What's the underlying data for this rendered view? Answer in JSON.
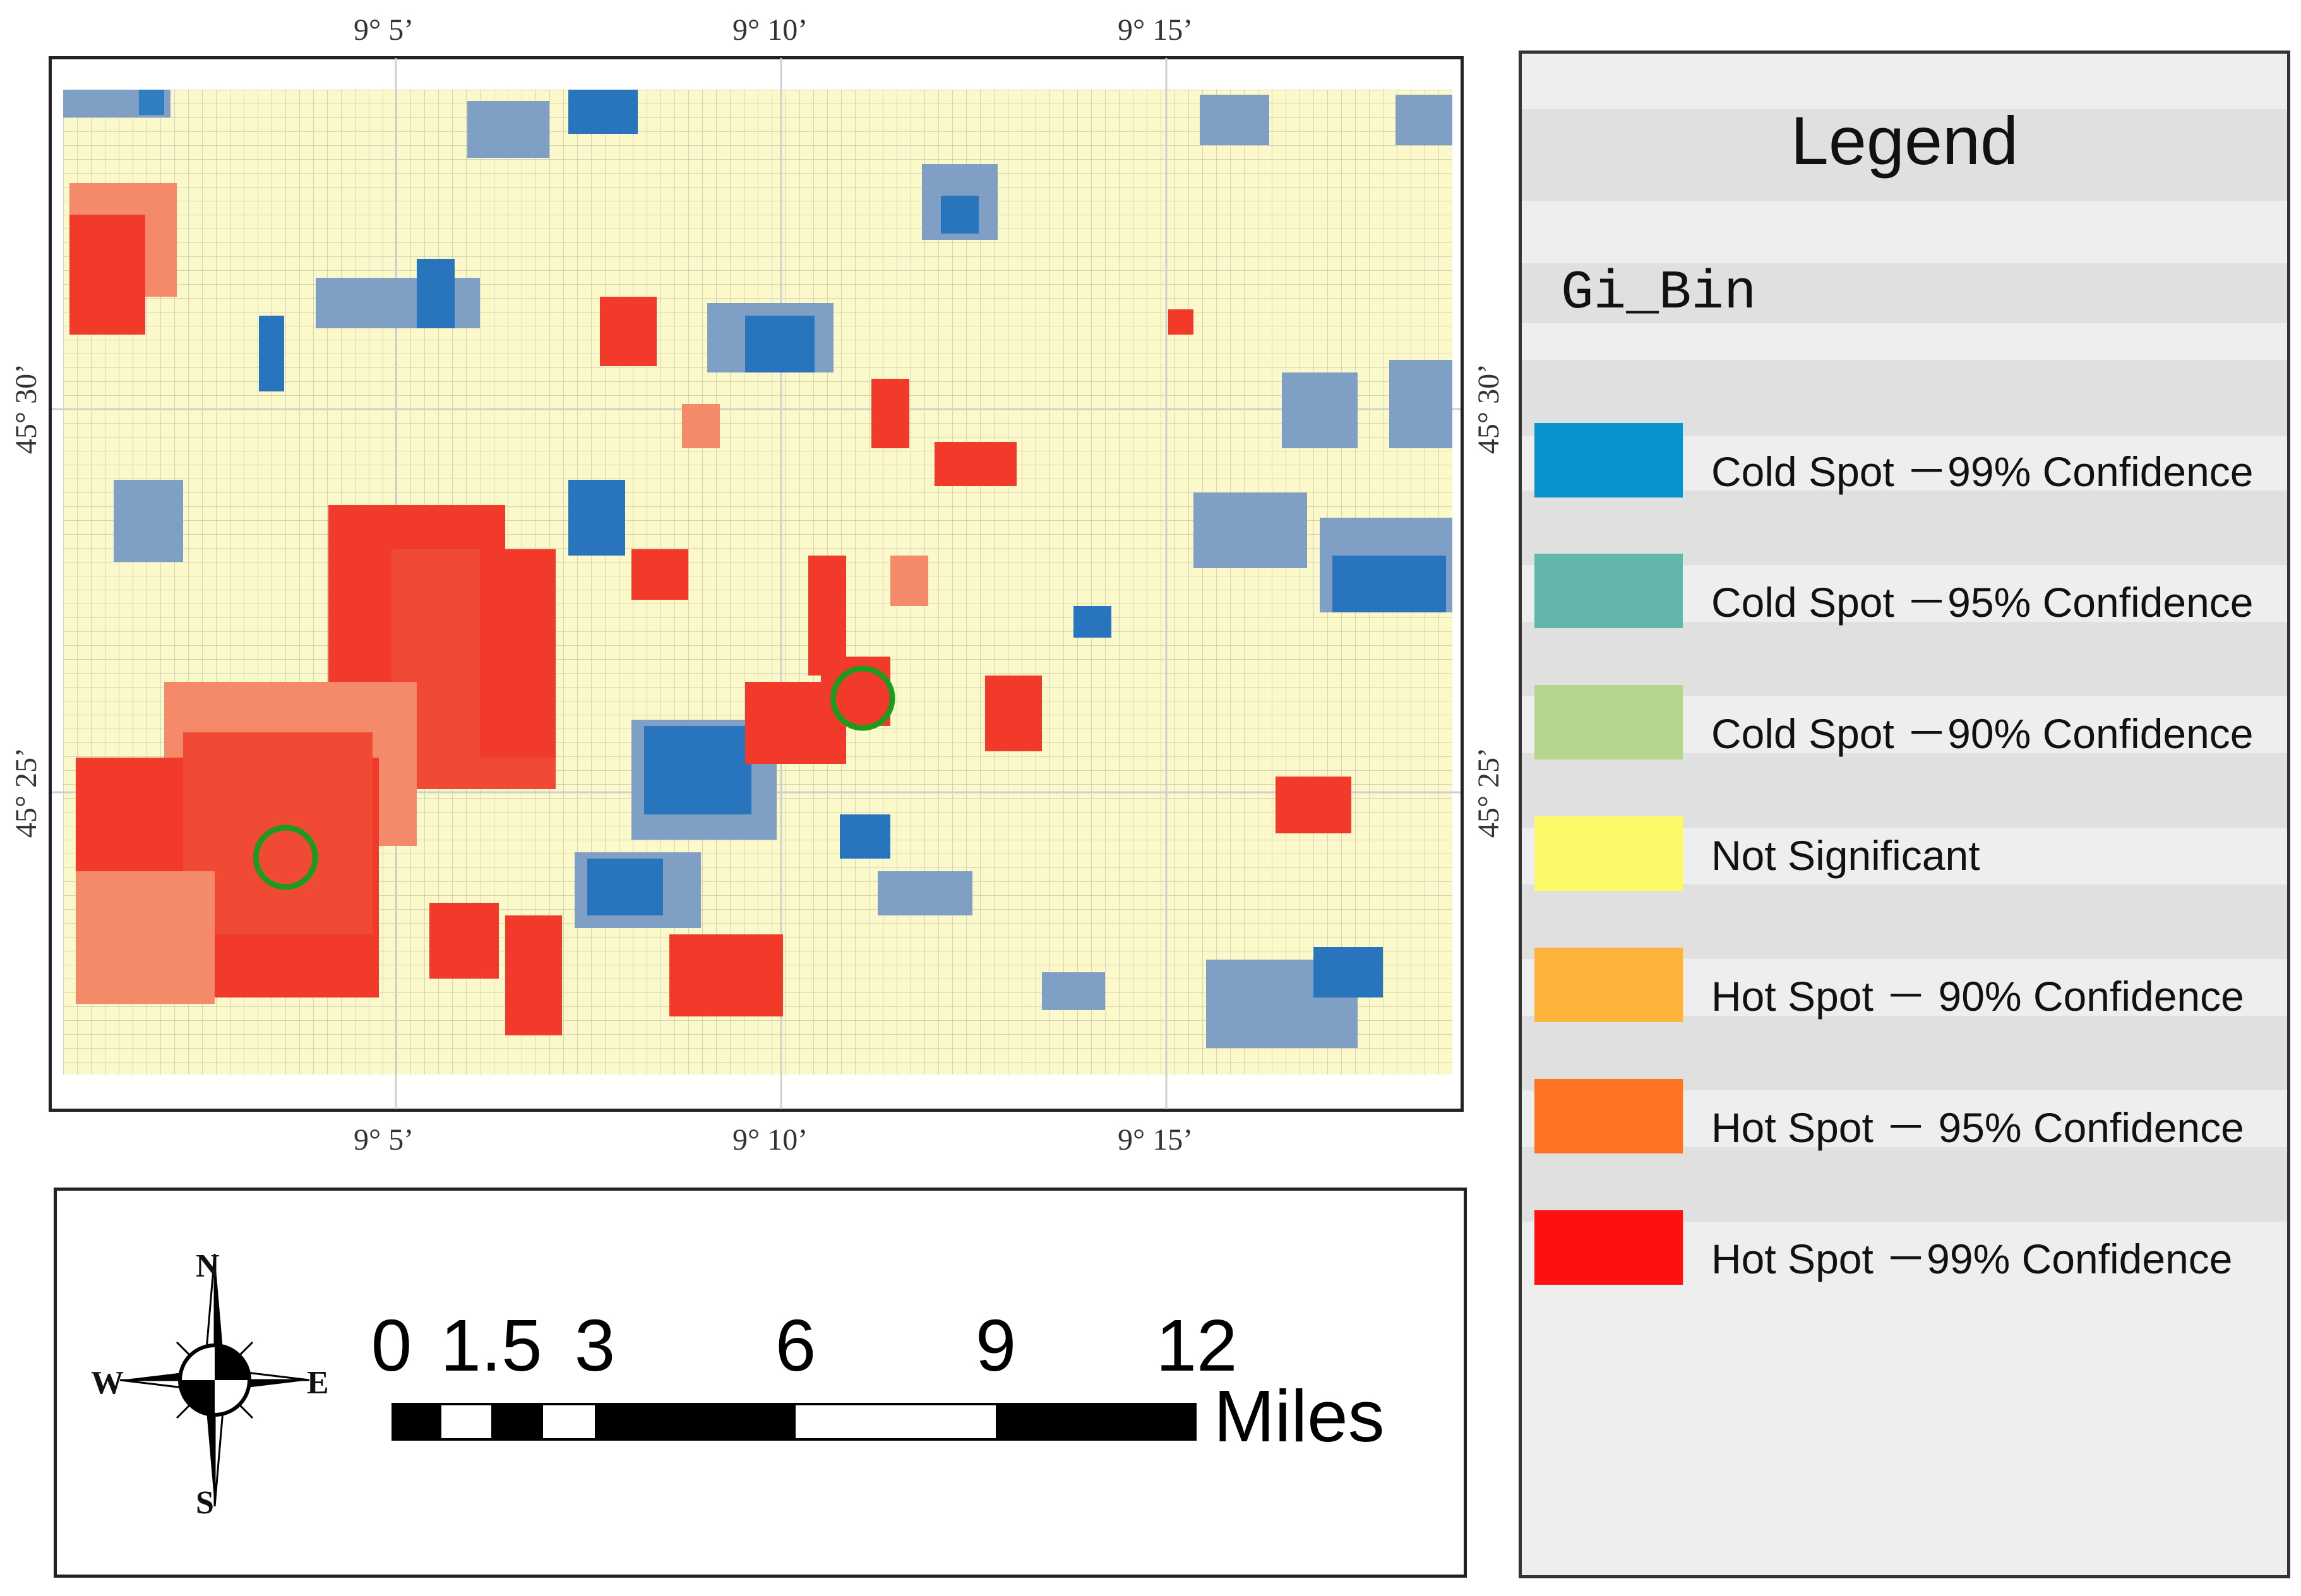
{
  "map": {
    "top_ticks": [
      "9° 5’",
      "9° 10’",
      "9° 15’"
    ],
    "bottom_ticks": [
      "9° 5’",
      "9° 10’",
      "9° 15’"
    ],
    "left_ticks": [
      "45° 30’",
      "45° 25’"
    ],
    "right_ticks": [
      "45° 30’",
      "45° 25’"
    ],
    "marker_color": "#1e9a1e"
  },
  "legend": {
    "title": "Legend",
    "field": "Gi_Bin",
    "items": [
      {
        "label": "Cold Spot －99% Confidence",
        "color": "#0892d0"
      },
      {
        "label": "Cold Spot －95% Confidence",
        "color": "#63b6aa"
      },
      {
        "label": "Cold Spot －90% Confidence",
        "color": "#b5d68e"
      },
      {
        "label": "Not Significant",
        "color": "#fdfa6a"
      },
      {
        "label": "Hot Spot － 90% Confidence",
        "color": "#fdb43a"
      },
      {
        "label": "Hot Spot － 95% Confidence",
        "color": "#fe7422"
      },
      {
        "label": "Hot Spot －99% Confidence",
        "color": "#fe1010"
      }
    ]
  },
  "scale": {
    "numbers": [
      "0",
      "1.5",
      "3",
      "6",
      "9",
      "12"
    ],
    "unit": "Miles"
  },
  "compass": {
    "n": "N",
    "s": "S",
    "e": "E",
    "w": "W"
  }
}
